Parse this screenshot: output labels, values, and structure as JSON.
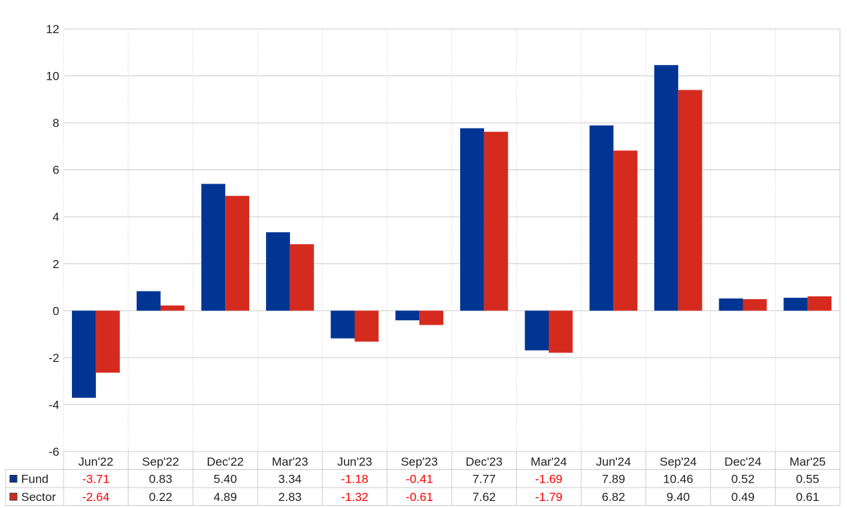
{
  "chart_data": {
    "type": "bar",
    "categories": [
      "Jun'22",
      "Sep'22",
      "Dec'22",
      "Mar'23",
      "Jun'23",
      "Sep'23",
      "Dec'23",
      "Mar'24",
      "Jun'24",
      "Sep'24",
      "Dec'24",
      "Mar'25"
    ],
    "series": [
      {
        "name": "Fund",
        "color": "#003594",
        "values": [
          -3.71,
          0.83,
          5.4,
          3.34,
          -1.18,
          -0.41,
          7.77,
          -1.69,
          7.89,
          10.46,
          0.52,
          0.55
        ],
        "labels": [
          "-3.71",
          "0.83",
          "5.40",
          "3.34",
          "-1.18",
          "-0.41",
          "7.77",
          "-1.69",
          "7.89",
          "10.46",
          "0.52",
          "0.55"
        ]
      },
      {
        "name": "Sector",
        "color": "#d52b1e",
        "values": [
          -2.64,
          0.22,
          4.89,
          2.83,
          -1.32,
          -0.61,
          7.62,
          -1.79,
          6.82,
          9.4,
          0.49,
          0.61
        ],
        "labels": [
          "-2.64",
          "0.22",
          "4.89",
          "2.83",
          "-1.32",
          "-0.61",
          "7.62",
          "-1.79",
          "6.82",
          "9.40",
          "0.49",
          "0.61"
        ]
      }
    ],
    "ylim": [
      -6,
      12
    ],
    "yticks": [
      -6,
      -4,
      -2,
      0,
      2,
      4,
      6,
      8,
      10,
      12
    ],
    "grid": true,
    "legend": "data-table-left",
    "negative_color": "#ff0000",
    "title": "",
    "xlabel": "",
    "ylabel": ""
  }
}
